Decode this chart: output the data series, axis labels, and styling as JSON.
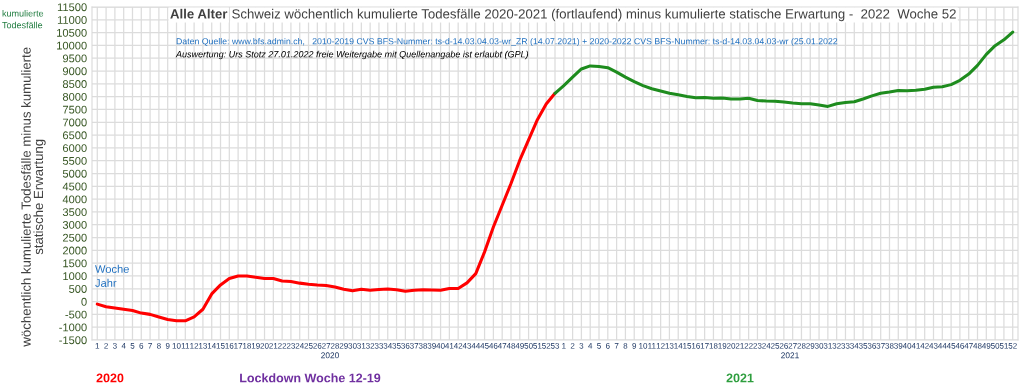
{
  "chart_data": {
    "type": "line",
    "title": "Alle Alter",
    "subtitle": "Schweiz wöchentlich kumulierte Todesfälle 2020-2021 (fortlaufend) minus kumulierte statische Erwartung -  2022  Woche 52",
    "ylabel": "wöchentlich kumulierte Todesfälle minus kumulierte\nstatische Erwartung",
    "annotations": [
      "kumulierte\nTodesfälle",
      "Daten Quelle: www.bfs.admin.ch,   2010-2019 CVS BFS-Nummer: ts-d-14.03.04.03-wr_ZR (14.07.2021) + 2020-2022 CVS BFS-Nummer: ts-d-14.03.04.03-wr (25.01.2022",
      "Auswertung: Urs Stotz 27.01.2022 freie Weitergabe mit Quellenangabe ist erlaubt (GPL)",
      "Woche",
      "Jahr",
      "2020",
      "2021",
      "2020",
      "Lockdown Woche 12-19",
      "2021"
    ],
    "categories": [
      "1",
      "2",
      "3",
      "4",
      "5",
      "6",
      "7",
      "8",
      "9",
      "10",
      "11",
      "12",
      "13",
      "14",
      "15",
      "16",
      "17",
      "18",
      "19",
      "20",
      "21",
      "22",
      "23",
      "24",
      "25",
      "26",
      "27",
      "28",
      "29",
      "30",
      "31",
      "32",
      "33",
      "34",
      "35",
      "36",
      "37",
      "38",
      "39",
      "40",
      "41",
      "42",
      "43",
      "44",
      "45",
      "46",
      "47",
      "48",
      "49",
      "50",
      "51",
      "52",
      "53",
      "1",
      "2",
      "3",
      "4",
      "5",
      "6",
      "7",
      "8",
      "9",
      "10",
      "11",
      "12",
      "13",
      "14",
      "15",
      "16",
      "17",
      "18",
      "19",
      "20",
      "21",
      "22",
      "23",
      "24",
      "25",
      "26",
      "27",
      "28",
      "29",
      "30",
      "31",
      "32",
      "33",
      "34",
      "35",
      "36",
      "37",
      "38",
      "39",
      "40",
      "41",
      "42",
      "43",
      "44",
      "45",
      "46",
      "47",
      "48",
      "49",
      "50",
      "51",
      "52"
    ],
    "series": [
      {
        "color": "#ff0000",
        "values": [
          -100,
          -200,
          -250,
          -300,
          -350,
          -450,
          -500,
          -600,
          -700,
          -750,
          -750,
          -600,
          -300,
          300,
          650,
          900,
          1000,
          1000,
          950,
          900,
          900,
          800,
          780,
          720,
          680,
          650,
          630,
          570,
          480,
          420,
          480,
          440,
          470,
          490,
          460,
          400,
          440,
          460,
          450,
          440,
          510,
          510,
          730,
          1090,
          1940,
          2910,
          3760,
          4610,
          5520,
          6310,
          7100,
          7710,
          8130,
          null,
          null,
          null,
          null,
          null,
          null,
          null,
          null,
          null,
          null,
          null,
          null,
          null,
          null,
          null,
          null,
          null,
          null,
          null,
          null,
          null,
          null,
          null,
          null,
          null,
          null,
          null,
          null,
          null,
          null,
          null,
          null,
          null,
          null,
          null,
          null,
          null,
          null,
          null,
          null,
          null,
          null,
          null,
          null,
          null,
          null,
          null,
          null,
          null,
          null,
          null,
          null
        ]
      },
      {
        "color": "#1e8c1e",
        "values": [
          null,
          null,
          null,
          null,
          null,
          null,
          null,
          null,
          null,
          null,
          null,
          null,
          null,
          null,
          null,
          null,
          null,
          null,
          null,
          null,
          null,
          null,
          null,
          null,
          null,
          null,
          null,
          null,
          null,
          null,
          null,
          null,
          null,
          null,
          null,
          null,
          null,
          null,
          null,
          null,
          null,
          null,
          null,
          null,
          null,
          null,
          null,
          null,
          null,
          null,
          null,
          null,
          8130,
          8430,
          8760,
          9080,
          9200,
          9180,
          9130,
          8960,
          8760,
          8590,
          8430,
          8310,
          8220,
          8130,
          8070,
          8010,
          7960,
          7970,
          7940,
          7950,
          7910,
          7910,
          7940,
          7850,
          7830,
          7820,
          7790,
          7750,
          7720,
          7720,
          7670,
          7620,
          7720,
          7770,
          7800,
          7910,
          8030,
          8130,
          8180,
          8240,
          8230,
          8250,
          8290,
          8370,
          8390,
          8470,
          8640,
          8880,
          9220,
          9650,
          9990,
          10220,
          10520
        ]
      }
    ],
    "ylim": [
      -1500,
      11500
    ],
    "yticks": [
      -1500,
      -1000,
      -500,
      0,
      500,
      1000,
      1500,
      2000,
      2500,
      3000,
      3500,
      4000,
      4500,
      5000,
      5500,
      6000,
      6500,
      7000,
      7500,
      8000,
      8500,
      9000,
      9500,
      10000,
      10500,
      11000,
      11500
    ],
    "grid": true
  }
}
